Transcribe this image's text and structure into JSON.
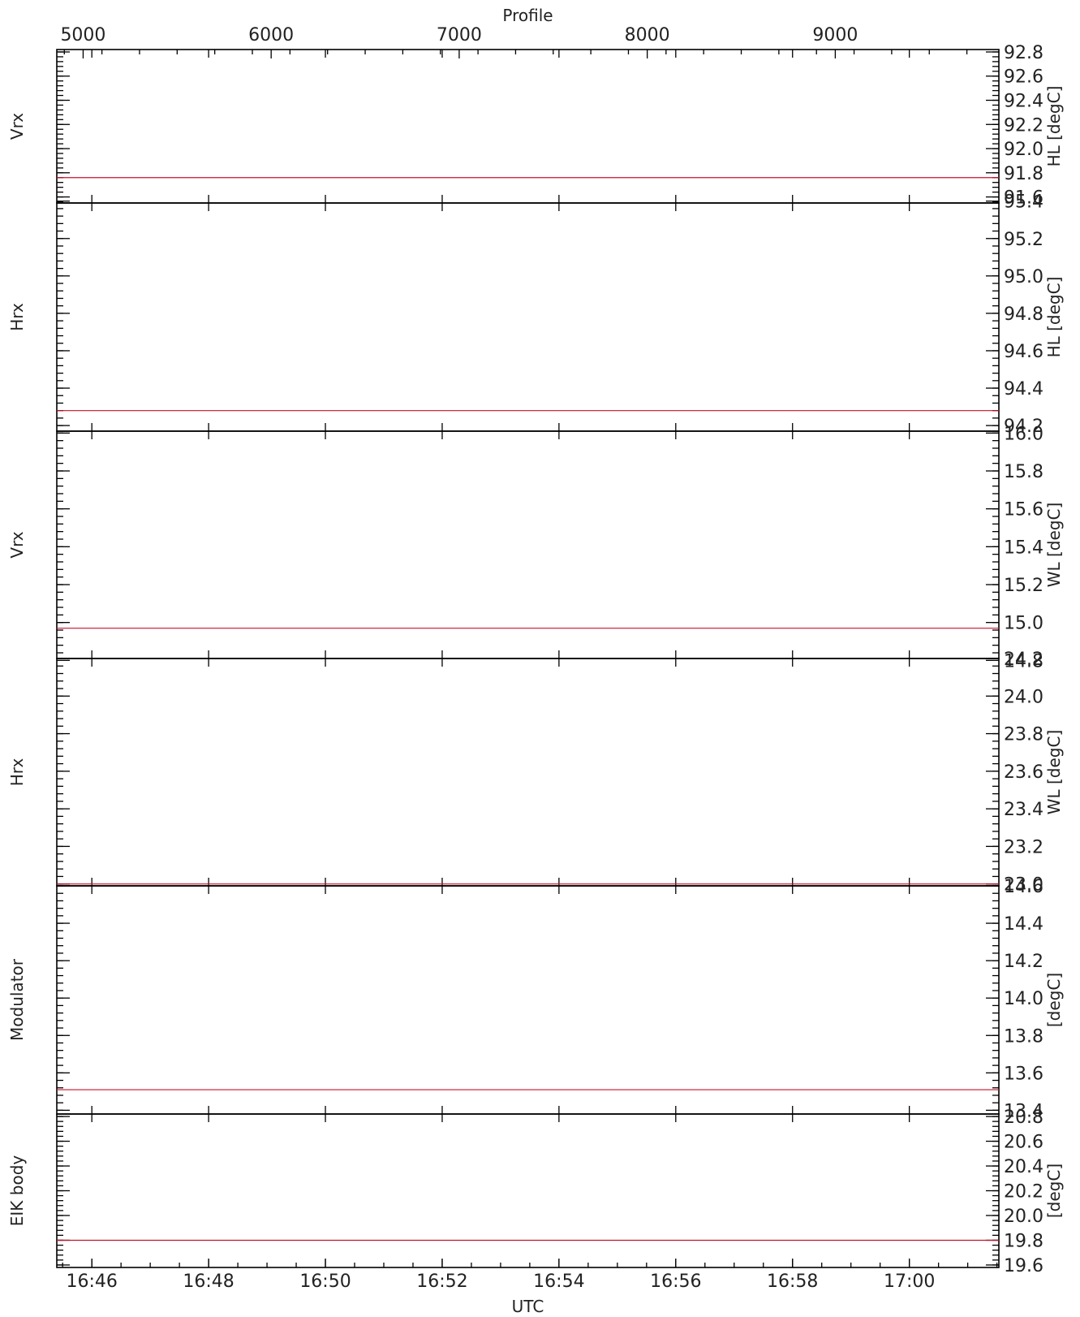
{
  "chart_data": {
    "type": "line",
    "top_axis": {
      "label": "Profile",
      "ticks": [
        "5000",
        "6000",
        "7000",
        "8000",
        "9000"
      ],
      "range": [
        4860,
        9870
      ]
    },
    "x_axis": {
      "label": "UTC",
      "ticks": [
        "16:46",
        "16:48",
        "16:50",
        "16:52",
        "16:54",
        "16:56",
        "16:58",
        "17:00"
      ],
      "range": [
        "16:45:24",
        "17:01:32"
      ]
    },
    "panels": [
      {
        "left_label": "Vrx",
        "right_label": "HL [degC]",
        "ylim": [
          91.55,
          92.82
        ],
        "ticks": [
          "91.6",
          "91.8",
          "92.0",
          "92.2",
          "92.4",
          "92.6",
          "92.8"
        ],
        "tick_values": [
          91.6,
          91.8,
          92.0,
          92.2,
          92.4,
          92.6,
          92.8
        ],
        "series": [
          {
            "values": [
              91.76,
              91.76
            ]
          }
        ]
      },
      {
        "left_label": "Hrx",
        "right_label": "HL [degC]",
        "ylim": [
          94.17,
          95.39
        ],
        "ticks": [
          "94.2",
          "94.4",
          "94.6",
          "94.8",
          "95.0",
          "95.2",
          "95.4"
        ],
        "tick_values": [
          94.2,
          94.4,
          94.6,
          94.8,
          95.0,
          95.2,
          95.4
        ],
        "series": [
          {
            "values": [
              94.28,
              94.28
            ]
          }
        ]
      },
      {
        "left_label": "Vrx",
        "right_label": "WL [degC]",
        "ylim": [
          14.81,
          16.01
        ],
        "ticks": [
          "14.8",
          "15.0",
          "15.2",
          "15.4",
          "15.6",
          "15.8",
          "16.0"
        ],
        "tick_values": [
          14.8,
          15.0,
          15.2,
          15.4,
          15.6,
          15.8,
          16.0
        ],
        "series": [
          {
            "values": [
              14.97,
              14.97
            ]
          }
        ]
      },
      {
        "left_label": "Hrx",
        "right_label": "WL [degC]",
        "ylim": [
          22.99,
          24.2
        ],
        "ticks": [
          "23.0",
          "23.2",
          "23.4",
          "23.6",
          "23.8",
          "24.0",
          "24.2"
        ],
        "tick_values": [
          23.0,
          23.2,
          23.4,
          23.6,
          23.8,
          24.0,
          24.2
        ],
        "series": [
          {
            "values": [
              23.0,
              23.0
            ]
          }
        ]
      },
      {
        "left_label": "Modulator",
        "right_label": "[degC]",
        "ylim": [
          13.38,
          14.6
        ],
        "ticks": [
          "13.4",
          "13.6",
          "13.8",
          "14.0",
          "14.2",
          "14.4",
          "14.6"
        ],
        "tick_values": [
          13.4,
          13.6,
          13.8,
          14.0,
          14.2,
          14.4,
          14.6
        ],
        "series": [
          {
            "values": [
              13.51,
              13.51
            ]
          }
        ]
      },
      {
        "left_label": "EIK body",
        "right_label": "[degC]",
        "ylim": [
          19.58,
          20.82
        ],
        "ticks": [
          "19.6",
          "19.8",
          "20.0",
          "20.2",
          "20.4",
          "20.6",
          "20.8"
        ],
        "tick_values": [
          19.6,
          19.8,
          20.0,
          20.2,
          20.4,
          20.6,
          20.8
        ],
        "series": [
          {
            "values": [
              19.8,
              19.8
            ]
          }
        ]
      }
    ],
    "series_color": "#c8102e",
    "grid": false
  }
}
